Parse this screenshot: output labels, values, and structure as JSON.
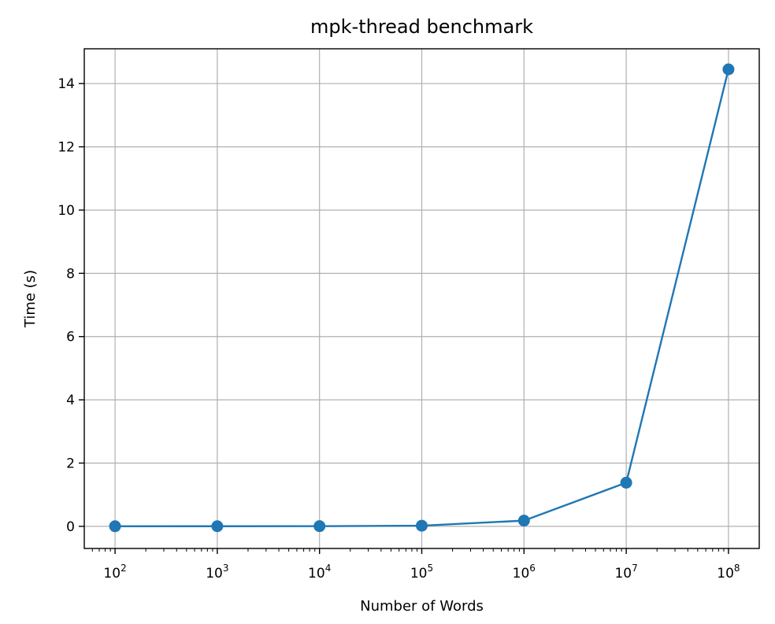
{
  "chart_data": {
    "type": "line",
    "title": "mpk-thread benchmark",
    "xlabel": "Number of Words",
    "ylabel": "Time (s)",
    "xscale": "log",
    "xlim": [
      50,
      200000000
    ],
    "ylim": [
      -0.7,
      15.1
    ],
    "grid": true,
    "x": [
      100,
      1000,
      10000,
      100000,
      1000000,
      10000000,
      100000000
    ],
    "xtick_values": [
      100,
      1000,
      10000,
      100000,
      1000000,
      10000000,
      100000000
    ],
    "xtick_exponents": [
      "2",
      "3",
      "4",
      "5",
      "6",
      "7",
      "8"
    ],
    "xtick_base": "10",
    "ytick_values": [
      0,
      2,
      4,
      6,
      8,
      10,
      12,
      14
    ],
    "ytick_labels": [
      "0",
      "2",
      "4",
      "6",
      "8",
      "10",
      "12",
      "14"
    ],
    "series": [
      {
        "values": [
          0.002,
          0.003,
          0.005,
          0.02,
          0.18,
          1.38,
          14.45
        ],
        "color": "#1f77b4",
        "marker": "circle"
      }
    ]
  }
}
